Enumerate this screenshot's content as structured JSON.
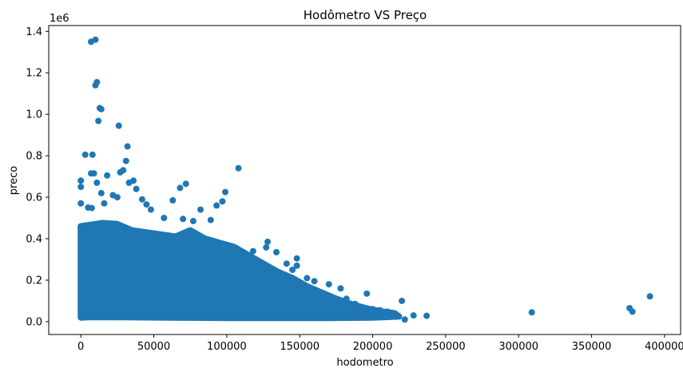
{
  "chart_data": {
    "type": "scatter",
    "title": "Hodômetro VS Preço",
    "xlabel": "hodometro",
    "ylabel": "preco",
    "y_offset_label": "1e6",
    "xlim": [
      -22000,
      411000
    ],
    "ylim": [
      -62000,
      1428000
    ],
    "xticks": [
      0,
      50000,
      100000,
      150000,
      200000,
      250000,
      300000,
      350000,
      400000
    ],
    "xtick_labels": [
      "0",
      "50000",
      "100000",
      "150000",
      "200000",
      "250000",
      "300000",
      "350000",
      "400000"
    ],
    "yticks": [
      0,
      200000,
      400000,
      600000,
      800000,
      1000000,
      1200000,
      1400000
    ],
    "ytick_labels": [
      "0.0",
      "0.2",
      "0.4",
      "0.6",
      "0.8",
      "1.0",
      "1.2",
      "1.4"
    ],
    "grid": false,
    "colors": {
      "marker": "#1f77b4"
    },
    "series": [
      {
        "points": [
          [
            7000,
            1350000
          ],
          [
            10000,
            1360000
          ],
          [
            10000,
            1140000
          ],
          [
            11000,
            1155000
          ],
          [
            13000,
            1030000
          ],
          [
            14000,
            1025000
          ],
          [
            12000,
            968000
          ],
          [
            26000,
            945000
          ],
          [
            3000,
            805000
          ],
          [
            8000,
            805000
          ],
          [
            32000,
            845000
          ],
          [
            31000,
            775000
          ],
          [
            27000,
            720000
          ],
          [
            29000,
            730000
          ],
          [
            7000,
            715000
          ],
          [
            9000,
            715000
          ],
          [
            18000,
            705000
          ],
          [
            108000,
            740000
          ],
          [
            0,
            680000
          ],
          [
            0,
            650000
          ],
          [
            11000,
            670000
          ],
          [
            36000,
            680000
          ],
          [
            33000,
            670000
          ],
          [
            72000,
            665000
          ],
          [
            68000,
            645000
          ],
          [
            99000,
            625000
          ],
          [
            38000,
            640000
          ],
          [
            14000,
            620000
          ],
          [
            22000,
            610000
          ],
          [
            0,
            570000
          ],
          [
            5000,
            550000
          ],
          [
            42000,
            590000
          ],
          [
            63000,
            585000
          ],
          [
            45000,
            565000
          ],
          [
            48000,
            540000
          ],
          [
            82000,
            540000
          ],
          [
            93000,
            560000
          ],
          [
            97000,
            580000
          ],
          [
            16000,
            570000
          ],
          [
            25000,
            600000
          ],
          [
            7500,
            548000
          ],
          [
            57000,
            500000
          ],
          [
            70000,
            495000
          ],
          [
            77000,
            485000
          ],
          [
            89000,
            490000
          ],
          [
            128000,
            385000
          ],
          [
            127000,
            358000
          ],
          [
            118000,
            340000
          ],
          [
            134000,
            335000
          ],
          [
            141000,
            280000
          ],
          [
            148000,
            305000
          ],
          [
            145000,
            250000
          ],
          [
            148000,
            270000
          ],
          [
            155000,
            210000
          ],
          [
            160000,
            195000
          ],
          [
            170000,
            180000
          ],
          [
            178000,
            160000
          ],
          [
            196000,
            135000
          ],
          [
            182000,
            110000
          ],
          [
            188000,
            85000
          ],
          [
            190000,
            75000
          ],
          [
            200000,
            60000
          ],
          [
            205000,
            55000
          ],
          [
            210000,
            48000
          ],
          [
            215000,
            40000
          ],
          [
            220000,
            100000
          ],
          [
            222000,
            10000
          ],
          [
            228000,
            30000
          ],
          [
            237000,
            28000
          ],
          [
            185000,
            70000
          ],
          [
            175000,
            80000
          ],
          [
            170000,
            60000
          ],
          [
            160000,
            40000
          ],
          [
            165000,
            90000
          ],
          [
            150000,
            120000
          ],
          [
            140000,
            150000
          ],
          [
            309000,
            45000
          ],
          [
            376000,
            65000
          ],
          [
            378000,
            48000
          ],
          [
            390000,
            122000
          ]
        ]
      }
    ]
  }
}
